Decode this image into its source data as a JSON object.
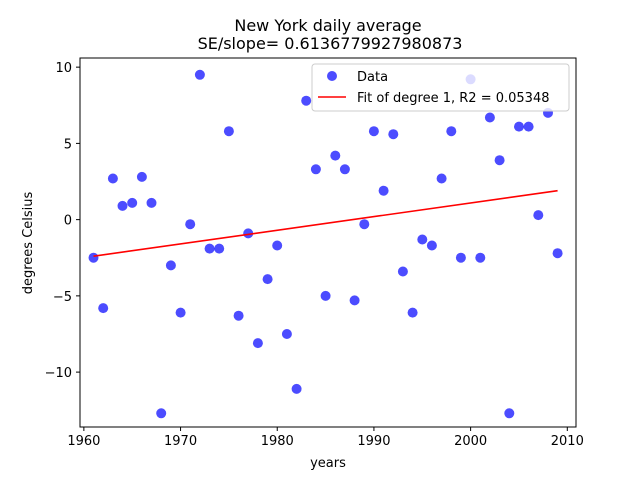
{
  "chart_data": {
    "type": "scatter",
    "title": "New York daily average",
    "subtitle": "SE/slope= 0.6136779927980873",
    "xlabel": "years",
    "ylabel": "degrees Celsius",
    "xlim": [
      1959.6,
      2010.9
    ],
    "ylim": [
      -13.6,
      10.6
    ],
    "xticks": [
      1960,
      1970,
      1980,
      1990,
      2000,
      2010
    ],
    "yticks": [
      -10,
      -5,
      0,
      5,
      10
    ],
    "xtick_labels": [
      "1960",
      "1970",
      "1980",
      "1990",
      "2000",
      "2010"
    ],
    "ytick_labels": [
      "−10",
      "−5",
      "0",
      "5",
      "10"
    ],
    "grid": false,
    "legend_position": "top-right",
    "series": [
      {
        "name": "Data",
        "kind": "scatter",
        "color": "#0000ff",
        "points": [
          [
            1961,
            -2.5
          ],
          [
            1962,
            -5.8
          ],
          [
            1963,
            2.7
          ],
          [
            1964,
            0.9
          ],
          [
            1965,
            1.1
          ],
          [
            1966,
            2.8
          ],
          [
            1967,
            1.1
          ],
          [
            1968,
            -12.7
          ],
          [
            1969,
            -3.0
          ],
          [
            1970,
            -6.1
          ],
          [
            1971,
            -0.3
          ],
          [
            1972,
            9.5
          ],
          [
            1973,
            -1.9
          ],
          [
            1974,
            -1.9
          ],
          [
            1975,
            5.8
          ],
          [
            1976,
            -6.3
          ],
          [
            1977,
            -0.9
          ],
          [
            1978,
            -8.1
          ],
          [
            1979,
            -3.9
          ],
          [
            1980,
            -1.7
          ],
          [
            1981,
            -7.5
          ],
          [
            1982,
            -11.1
          ],
          [
            1983,
            7.8
          ],
          [
            1984,
            3.3
          ],
          [
            1985,
            -5.0
          ],
          [
            1986,
            4.2
          ],
          [
            1987,
            3.3
          ],
          [
            1988,
            -5.3
          ],
          [
            1989,
            -0.3
          ],
          [
            1990,
            5.8
          ],
          [
            1991,
            1.9
          ],
          [
            1992,
            5.6
          ],
          [
            1993,
            -3.4
          ],
          [
            1994,
            -6.1
          ],
          [
            1995,
            -1.3
          ],
          [
            1996,
            -1.7
          ],
          [
            1997,
            2.7
          ],
          [
            1998,
            5.8
          ],
          [
            1999,
            -2.5
          ],
          [
            2000,
            9.2
          ],
          [
            2001,
            -2.5
          ],
          [
            2002,
            6.7
          ],
          [
            2003,
            3.9
          ],
          [
            2004,
            -12.7
          ],
          [
            2005,
            6.1
          ],
          [
            2006,
            6.1
          ],
          [
            2007,
            0.3
          ],
          [
            2008,
            7.0
          ],
          [
            2009,
            -2.2
          ]
        ]
      },
      {
        "name": "Fit of degree 1, R2 = 0.05348",
        "kind": "line",
        "color": "#ff0000",
        "points": [
          [
            1961,
            -2.4
          ],
          [
            2009,
            1.9
          ]
        ]
      }
    ]
  }
}
